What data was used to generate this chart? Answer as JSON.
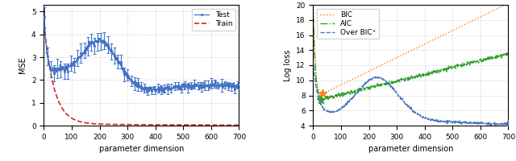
{
  "left": {
    "xlabel": "parameter dimension",
    "ylabel": "MSE",
    "xlim": [
      0,
      700
    ],
    "ylim": [
      0,
      5.3
    ],
    "yticks": [
      0,
      1,
      2,
      3,
      4,
      5
    ],
    "xticks": [
      0,
      100,
      200,
      300,
      400,
      500,
      600,
      700
    ],
    "test_color": "#4472c4",
    "train_color": "#d62728",
    "legend_test": "Test",
    "legend_train": "Train"
  },
  "right": {
    "xlabel": "parameter dimension",
    "ylabel": "Log loss",
    "xlim": [
      0,
      700
    ],
    "ylim": [
      4,
      20
    ],
    "yticks": [
      4,
      6,
      8,
      10,
      12,
      14,
      16,
      18,
      20
    ],
    "xticks": [
      0,
      100,
      200,
      300,
      400,
      500,
      600,
      700
    ],
    "bic_color": "#ff7f0e",
    "aic_color": "#2ca02c",
    "over_bic_color": "#4472c4",
    "legend_bic": "BIC",
    "legend_aic": "AIC",
    "legend_over": "Over BIC⁺"
  }
}
